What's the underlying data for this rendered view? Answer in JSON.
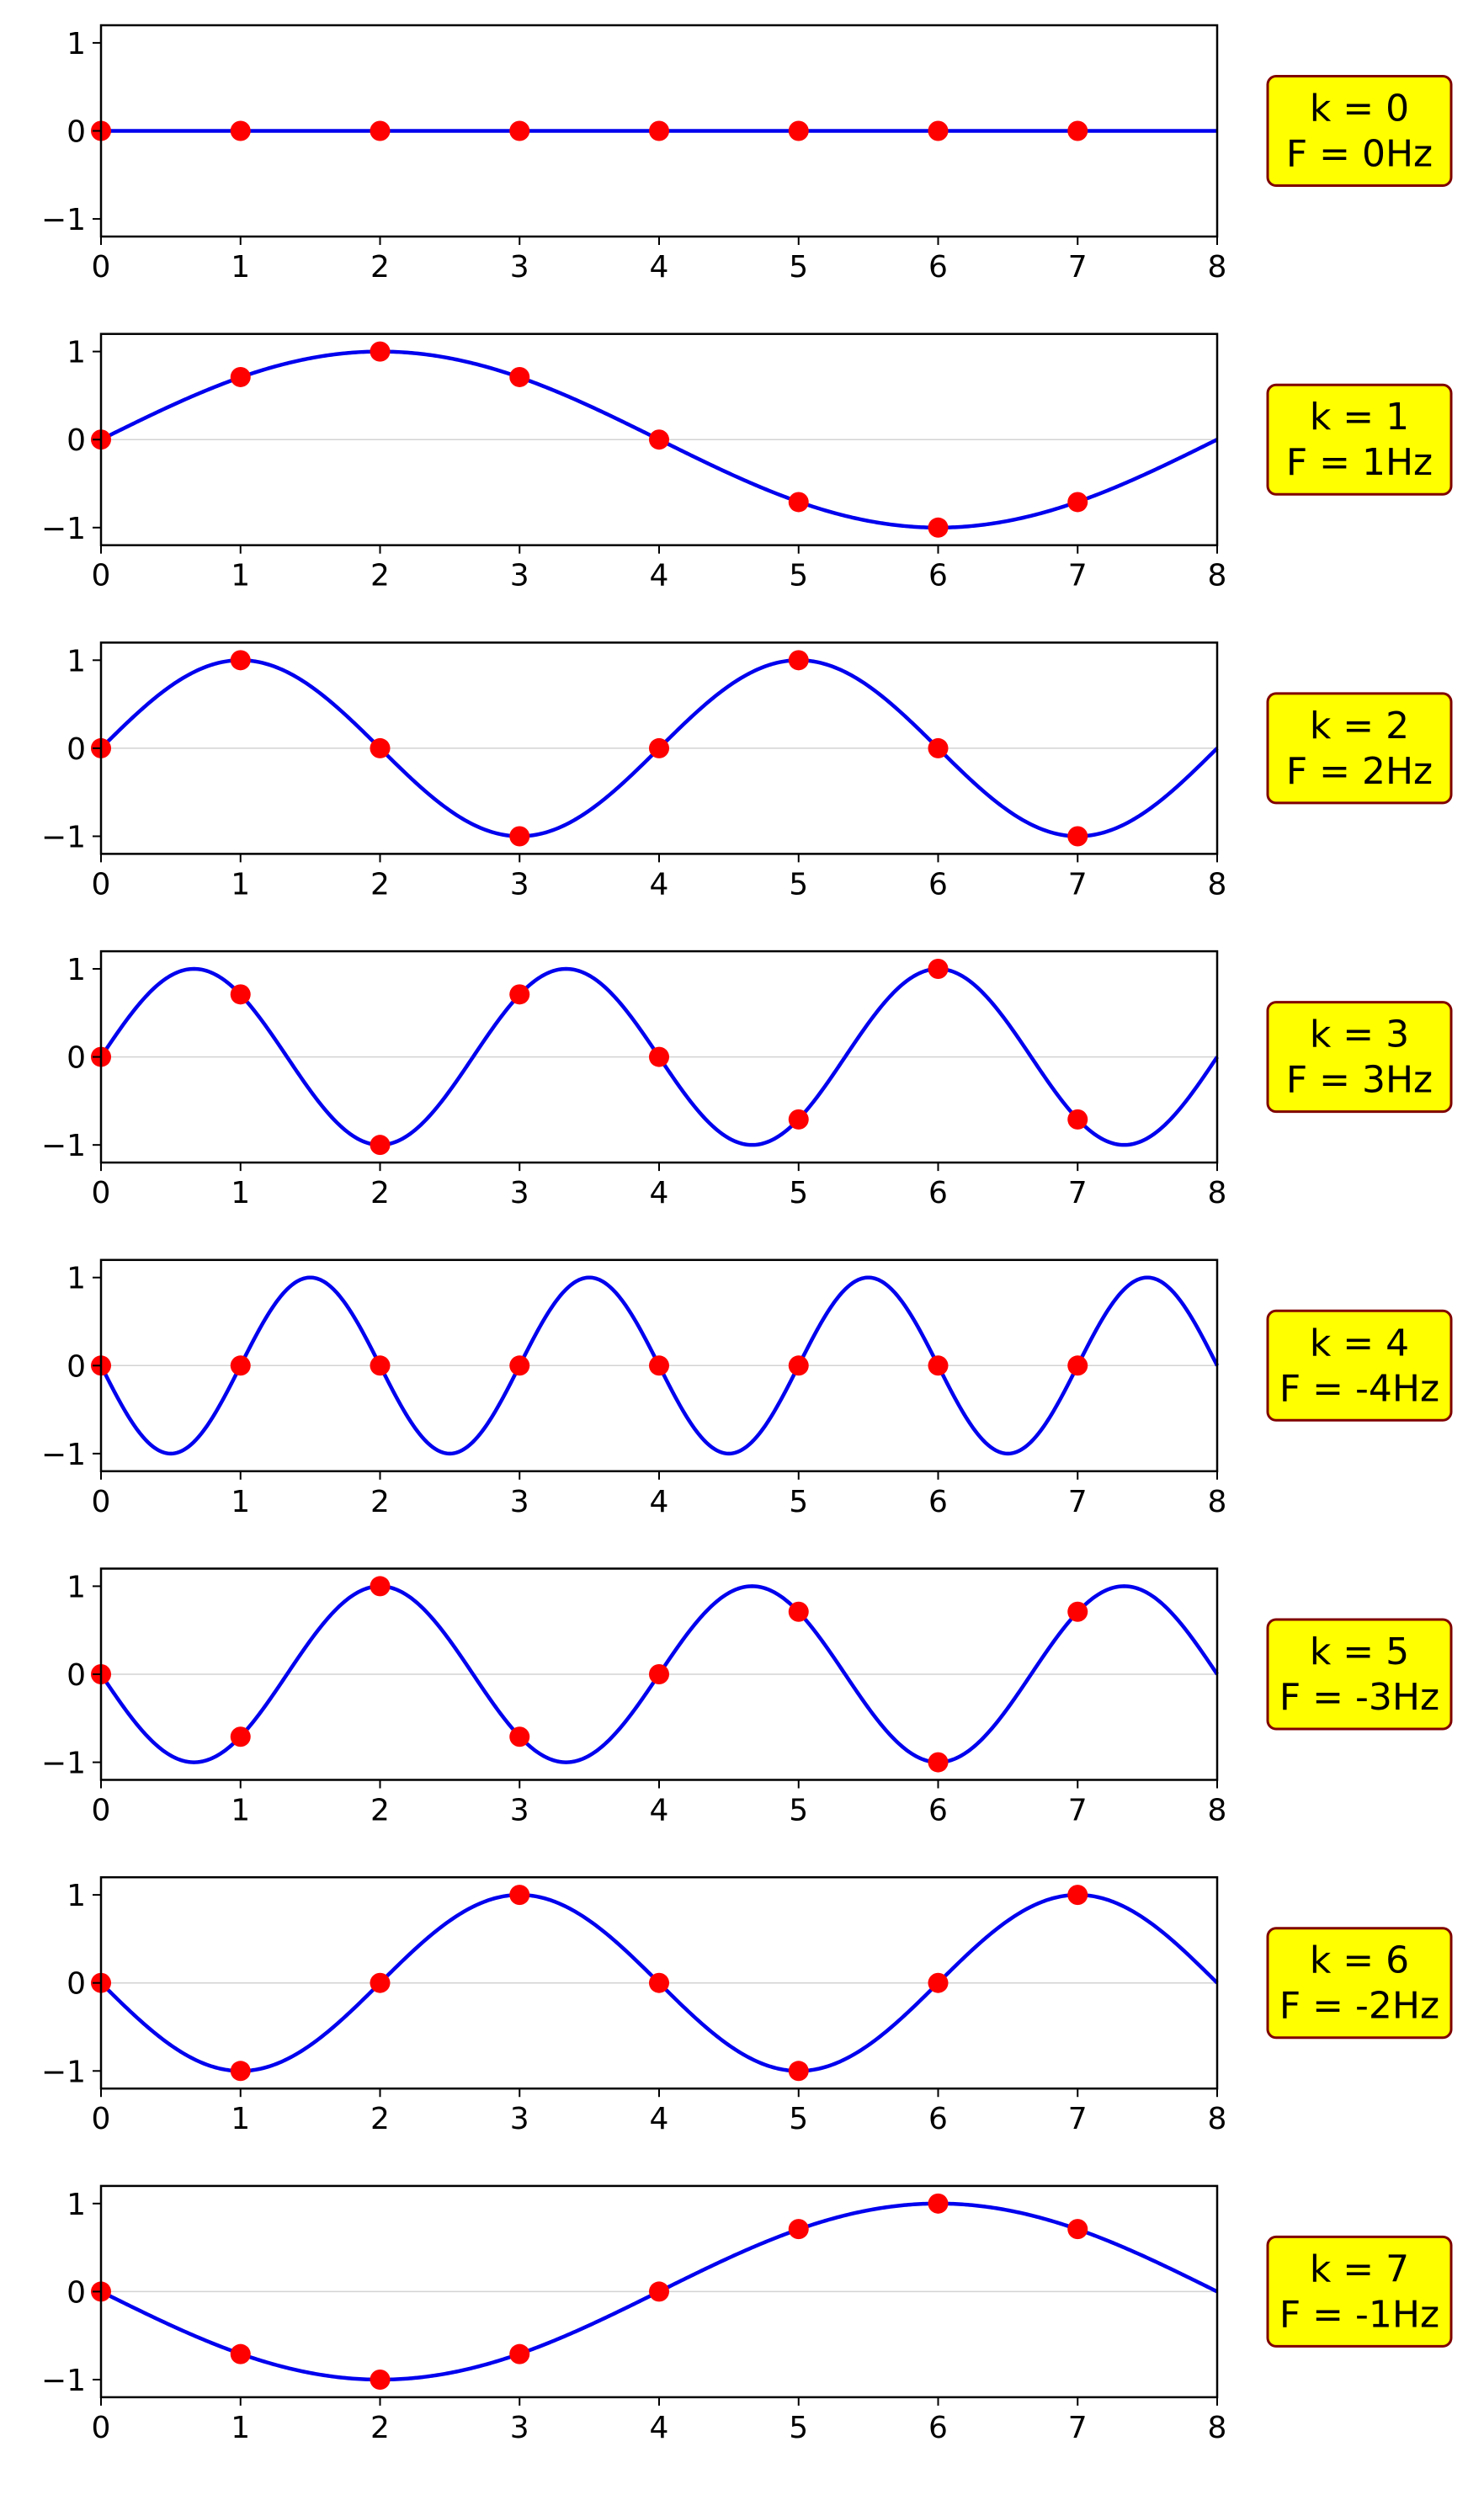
{
  "chart_data": [
    {
      "type": "line",
      "label_k": "k = 0",
      "label_f": "F = 0Hz",
      "frequency_hz": 0,
      "samples": {
        "x": [
          0,
          1,
          2,
          3,
          4,
          5,
          6,
          7
        ],
        "y": [
          0,
          0,
          0,
          0,
          0,
          0,
          0,
          0
        ]
      },
      "xlim": [
        0,
        8
      ],
      "ylim": [
        -1.2,
        1.2
      ],
      "xticks": [
        "0",
        "1",
        "2",
        "3",
        "4",
        "5",
        "6",
        "7",
        "8"
      ],
      "yticks": [
        "1",
        "0",
        "−1"
      ]
    },
    {
      "type": "line",
      "label_k": "k = 1",
      "label_f": "F = 1Hz",
      "frequency_hz": 1,
      "samples": {
        "x": [
          0,
          1,
          2,
          3,
          4,
          5,
          6,
          7
        ],
        "y": [
          0,
          0.71,
          1,
          0.71,
          0,
          -0.71,
          -1,
          -0.71
        ]
      },
      "xlim": [
        0,
        8
      ],
      "ylim": [
        -1.2,
        1.2
      ],
      "xticks": [
        "0",
        "1",
        "2",
        "3",
        "4",
        "5",
        "6",
        "7",
        "8"
      ],
      "yticks": [
        "1",
        "0",
        "−1"
      ]
    },
    {
      "type": "line",
      "label_k": "k = 2",
      "label_f": "F = 2Hz",
      "frequency_hz": 2,
      "samples": {
        "x": [
          0,
          1,
          2,
          3,
          4,
          5,
          6,
          7
        ],
        "y": [
          0,
          1,
          0,
          -1,
          0,
          1,
          0,
          -1
        ]
      },
      "xlim": [
        0,
        8
      ],
      "ylim": [
        -1.2,
        1.2
      ],
      "xticks": [
        "0",
        "1",
        "2",
        "3",
        "4",
        "5",
        "6",
        "7",
        "8"
      ],
      "yticks": [
        "1",
        "0",
        "−1"
      ]
    },
    {
      "type": "line",
      "label_k": "k = 3",
      "label_f": "F = 3Hz",
      "frequency_hz": 3,
      "samples": {
        "x": [
          0,
          1,
          2,
          3,
          4,
          5,
          6,
          7
        ],
        "y": [
          0,
          0.71,
          -1,
          0.71,
          0,
          -0.71,
          1,
          -0.71
        ]
      },
      "xlim": [
        0,
        8
      ],
      "ylim": [
        -1.2,
        1.2
      ],
      "xticks": [
        "0",
        "1",
        "2",
        "3",
        "4",
        "5",
        "6",
        "7",
        "8"
      ],
      "yticks": [
        "1",
        "0",
        "−1"
      ]
    },
    {
      "type": "line",
      "label_k": "k = 4",
      "label_f": "F = -4Hz",
      "frequency_hz": -4,
      "samples": {
        "x": [
          0,
          1,
          2,
          3,
          4,
          5,
          6,
          7
        ],
        "y": [
          0,
          0,
          0,
          0,
          0,
          0,
          0,
          0
        ]
      },
      "xlim": [
        0,
        8
      ],
      "ylim": [
        -1.2,
        1.2
      ],
      "xticks": [
        "0",
        "1",
        "2",
        "3",
        "4",
        "5",
        "6",
        "7",
        "8"
      ],
      "yticks": [
        "1",
        "0",
        "−1"
      ]
    },
    {
      "type": "line",
      "label_k": "k = 5",
      "label_f": "F = -3Hz",
      "frequency_hz": -3,
      "samples": {
        "x": [
          0,
          1,
          2,
          3,
          4,
          5,
          6,
          7
        ],
        "y": [
          0,
          -0.71,
          1,
          -0.71,
          0,
          0.71,
          -1,
          0.71
        ]
      },
      "xlim": [
        0,
        8
      ],
      "ylim": [
        -1.2,
        1.2
      ],
      "xticks": [
        "0",
        "1",
        "2",
        "3",
        "4",
        "5",
        "6",
        "7",
        "8"
      ],
      "yticks": [
        "1",
        "0",
        "−1"
      ]
    },
    {
      "type": "line",
      "label_k": "k = 6",
      "label_f": "F = -2Hz",
      "frequency_hz": -2,
      "samples": {
        "x": [
          0,
          1,
          2,
          3,
          4,
          5,
          6,
          7
        ],
        "y": [
          0,
          -1,
          0,
          1,
          0,
          -1,
          0,
          1
        ]
      },
      "xlim": [
        0,
        8
      ],
      "ylim": [
        -1.2,
        1.2
      ],
      "xticks": [
        "0",
        "1",
        "2",
        "3",
        "4",
        "5",
        "6",
        "7",
        "8"
      ],
      "yticks": [
        "1",
        "0",
        "−1"
      ]
    },
    {
      "type": "line",
      "label_k": "k = 7",
      "label_f": "F = -1Hz",
      "frequency_hz": -1,
      "samples": {
        "x": [
          0,
          1,
          2,
          3,
          4,
          5,
          6,
          7
        ],
        "y": [
          0,
          -0.71,
          -1,
          -0.71,
          0,
          0.71,
          1,
          0.71
        ]
      },
      "xlim": [
        0,
        8
      ],
      "ylim": [
        -1.2,
        1.2
      ],
      "xticks": [
        "0",
        "1",
        "2",
        "3",
        "4",
        "5",
        "6",
        "7",
        "8"
      ],
      "yticks": [
        "1",
        "0",
        "−1"
      ]
    }
  ],
  "style": {
    "curve_color": "#0000ee",
    "sample_color": "#ff0000",
    "zero_line_color": "#d3d3d3",
    "label_box_fill": "#ffff00",
    "label_box_stroke": "#800000"
  }
}
